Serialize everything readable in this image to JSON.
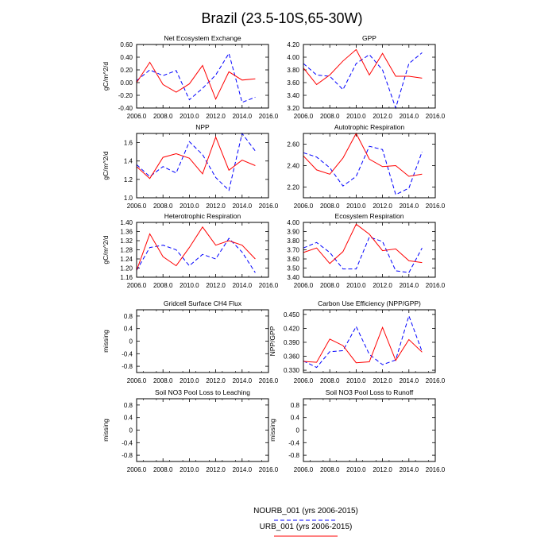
{
  "figure": {
    "title": "Brazil (23.5-10S,65-30W)",
    "legend": [
      {
        "name": "NOURB_001 (yrs 2006-2015)",
        "color": "#0000ff",
        "dash": true
      },
      {
        "name": "URB_001 (yrs 2006-2015)",
        "color": "#ff0000",
        "dash": false
      }
    ]
  },
  "chart_data": [
    {
      "type": "line",
      "title": "Net Ecosystem Exchange",
      "ylabel": "gC/m^2/d",
      "xlim": [
        2006,
        2016
      ],
      "ylim": [
        -0.4,
        0.6
      ],
      "x_ticks": [
        2006,
        2008,
        2010,
        2012,
        2014,
        2016
      ],
      "x_tick_labels": [
        "2006.0",
        "2008.0",
        "2010.0",
        "2012.0",
        "2014.0",
        "2016.0"
      ],
      "y_ticks": [
        -0.4,
        -0.2,
        0,
        0.2,
        0.4,
        0.6
      ],
      "y_tick_labels": [
        "-0.40",
        "-0.20",
        "0.00",
        "0.20",
        "0.40",
        "0.60"
      ],
      "x": [
        2006,
        2007,
        2008,
        2009,
        2010,
        2011,
        2012,
        2013,
        2014,
        2015
      ],
      "series": [
        {
          "color": "#0000ff",
          "dash": true,
          "values": [
            0.03,
            0.2,
            0.11,
            0.19,
            -0.27,
            -0.09,
            0.12,
            0.46,
            -0.31,
            -0.23
          ]
        },
        {
          "color": "#ff0000",
          "dash": false,
          "values": [
            0.0,
            0.32,
            -0.03,
            -0.15,
            -0.02,
            0.27,
            -0.26,
            0.17,
            0.04,
            0.06
          ]
        }
      ]
    },
    {
      "type": "line",
      "title": "GPP",
      "ylabel": "",
      "xlim": [
        2006,
        2016
      ],
      "ylim": [
        3.2,
        4.2
      ],
      "x_ticks": [
        2006,
        2008,
        2010,
        2012,
        2014,
        2016
      ],
      "x_tick_labels": [
        "2006.0",
        "2008.0",
        "2010.0",
        "2012.0",
        "2014.0",
        "2016.0"
      ],
      "y_ticks": [
        3.2,
        3.4,
        3.6,
        3.8,
        4.0,
        4.2
      ],
      "y_tick_labels": [
        "3.20",
        "3.40",
        "3.60",
        "3.80",
        "4.00",
        "4.20"
      ],
      "x": [
        2006,
        2007,
        2008,
        2009,
        2010,
        2011,
        2012,
        2013,
        2014,
        2015
      ],
      "series": [
        {
          "color": "#0000ff",
          "dash": true,
          "values": [
            3.9,
            3.72,
            3.7,
            3.49,
            3.9,
            4.04,
            3.8,
            3.2,
            3.9,
            4.07
          ]
        },
        {
          "color": "#ff0000",
          "dash": false,
          "values": [
            3.83,
            3.57,
            3.72,
            3.94,
            4.12,
            3.72,
            4.06,
            3.7,
            3.7,
            3.67
          ]
        }
      ]
    },
    {
      "type": "line",
      "title": "NPP",
      "ylabel": "gC/m^2/d",
      "xlim": [
        2006,
        2016
      ],
      "ylim": [
        1.0,
        1.7
      ],
      "x_ticks": [
        2006,
        2008,
        2010,
        2012,
        2014,
        2016
      ],
      "x_tick_labels": [
        "2006.0",
        "2008.0",
        "2010.0",
        "2012.0",
        "2014.0",
        "2016.0"
      ],
      "y_ticks": [
        1.0,
        1.2,
        1.4,
        1.6
      ],
      "y_tick_labels": [
        "1.0",
        "1.2",
        "1.4",
        "1.6"
      ],
      "x": [
        2006,
        2007,
        2008,
        2009,
        2010,
        2011,
        2012,
        2013,
        2014,
        2015
      ],
      "series": [
        {
          "color": "#0000ff",
          "dash": true,
          "values": [
            1.36,
            1.23,
            1.34,
            1.27,
            1.61,
            1.47,
            1.22,
            1.08,
            1.7,
            1.51
          ]
        },
        {
          "color": "#ff0000",
          "dash": false,
          "values": [
            1.34,
            1.21,
            1.44,
            1.48,
            1.43,
            1.26,
            1.66,
            1.3,
            1.41,
            1.35
          ]
        }
      ]
    },
    {
      "type": "line",
      "title": "Autotrophic Respiration",
      "ylabel": "",
      "xlim": [
        2006,
        2016
      ],
      "ylim": [
        2.1,
        2.7
      ],
      "x_ticks": [
        2006,
        2008,
        2010,
        2012,
        2014,
        2016
      ],
      "x_tick_labels": [
        "2006.0",
        "2008.0",
        "2010.0",
        "2012.0",
        "2014.0",
        "2016.0"
      ],
      "y_ticks": [
        2.2,
        2.4,
        2.6
      ],
      "y_tick_labels": [
        "2.20",
        "2.40",
        "2.60"
      ],
      "x": [
        2006,
        2007,
        2008,
        2009,
        2010,
        2011,
        2012,
        2013,
        2014,
        2015
      ],
      "series": [
        {
          "color": "#0000ff",
          "dash": true,
          "values": [
            2.52,
            2.48,
            2.38,
            2.21,
            2.3,
            2.58,
            2.55,
            2.13,
            2.19,
            2.53
          ]
        },
        {
          "color": "#ff0000",
          "dash": false,
          "values": [
            2.49,
            2.36,
            2.32,
            2.47,
            2.7,
            2.46,
            2.39,
            2.4,
            2.3,
            2.32
          ]
        }
      ]
    },
    {
      "type": "line",
      "title": "Heterotrophic Respiration",
      "ylabel": "gC/m^2/d",
      "xlim": [
        2006,
        2016
      ],
      "ylim": [
        1.16,
        1.4
      ],
      "x_ticks": [
        2006,
        2008,
        2010,
        2012,
        2014,
        2016
      ],
      "x_tick_labels": [
        "2006.0",
        "2008.0",
        "2010.0",
        "2012.0",
        "2014.0",
        "2016.0"
      ],
      "y_ticks": [
        1.16,
        1.2,
        1.24,
        1.28,
        1.32,
        1.36,
        1.4
      ],
      "y_tick_labels": [
        "1.16",
        "1.20",
        "1.24",
        "1.28",
        "1.32",
        "1.36",
        "1.40"
      ],
      "x": [
        2006,
        2007,
        2008,
        2009,
        2010,
        2011,
        2012,
        2013,
        2014,
        2015
      ],
      "series": [
        {
          "color": "#0000ff",
          "dash": true,
          "values": [
            1.19,
            1.29,
            1.3,
            1.28,
            1.21,
            1.26,
            1.24,
            1.33,
            1.27,
            1.18
          ]
        },
        {
          "color": "#ff0000",
          "dash": false,
          "values": [
            1.19,
            1.35,
            1.25,
            1.21,
            1.29,
            1.38,
            1.3,
            1.32,
            1.3,
            1.24
          ]
        }
      ]
    },
    {
      "type": "line",
      "title": "Ecosystem Respiration",
      "ylabel": "",
      "xlim": [
        2006,
        2016
      ],
      "ylim": [
        3.4,
        4.0
      ],
      "x_ticks": [
        2006,
        2008,
        2010,
        2012,
        2014,
        2016
      ],
      "x_tick_labels": [
        "2006.0",
        "2008.0",
        "2010.0",
        "2012.0",
        "2014.0",
        "2016.0"
      ],
      "y_ticks": [
        3.4,
        3.5,
        3.6,
        3.7,
        3.8,
        3.9,
        4.0
      ],
      "y_tick_labels": [
        "3.40",
        "3.50",
        "3.60",
        "3.70",
        "3.80",
        "3.90",
        "4.00"
      ],
      "x": [
        2006,
        2007,
        2008,
        2009,
        2010,
        2011,
        2012,
        2013,
        2014,
        2015
      ],
      "series": [
        {
          "color": "#0000ff",
          "dash": true,
          "values": [
            3.72,
            3.78,
            3.67,
            3.49,
            3.49,
            3.84,
            3.79,
            3.47,
            3.45,
            3.72
          ]
        },
        {
          "color": "#ff0000",
          "dash": false,
          "values": [
            3.67,
            3.72,
            3.55,
            3.68,
            3.98,
            3.87,
            3.69,
            3.71,
            3.58,
            3.56
          ]
        }
      ]
    },
    {
      "type": "line",
      "title": "Gridcell Surface CH4 Flux",
      "ylabel": "missing",
      "xlim": [
        2006,
        2016
      ],
      "ylim": [
        -1,
        1
      ],
      "x_ticks": [
        2006,
        2008,
        2010,
        2012,
        2014,
        2016
      ],
      "x_tick_labels": [
        "2006.0",
        "2008.0",
        "2010.0",
        "2012.0",
        "2014.0",
        "2016.0"
      ],
      "y_ticks": [
        -0.8,
        -0.4,
        0,
        0.4,
        0.8
      ],
      "y_tick_labels": [
        "-0.8",
        "-0.4",
        "0",
        "0.4",
        "0.8"
      ],
      "x": [],
      "series": []
    },
    {
      "type": "line",
      "title": "Carbon Use Efficiency (NPP/GPP)",
      "ylabel": "NPP/GPP",
      "xlim": [
        2006,
        2016
      ],
      "ylim": [
        0.325,
        0.46
      ],
      "x_ticks": [
        2006,
        2008,
        2010,
        2012,
        2014,
        2016
      ],
      "x_tick_labels": [
        "2006.0",
        "2008.0",
        "2010.0",
        "2012.0",
        "2014.0",
        "2016.0"
      ],
      "y_ticks": [
        0.33,
        0.36,
        0.39,
        0.42,
        0.45
      ],
      "y_tick_labels": [
        "0.330",
        "0.360",
        "0.390",
        "0.420",
        "0.450"
      ],
      "x": [
        2006,
        2007,
        2008,
        2009,
        2010,
        2011,
        2012,
        2013,
        2014,
        2015
      ],
      "series": [
        {
          "color": "#0000ff",
          "dash": true,
          "values": [
            0.35,
            0.336,
            0.37,
            0.372,
            0.424,
            0.364,
            0.342,
            0.352,
            0.447,
            0.37
          ]
        },
        {
          "color": "#ff0000",
          "dash": false,
          "values": [
            0.349,
            0.347,
            0.397,
            0.383,
            0.346,
            0.348,
            0.422,
            0.351,
            0.396,
            0.369
          ]
        }
      ]
    },
    {
      "type": "line",
      "title": "Soil NO3 Pool Loss to Leaching",
      "ylabel": "missing",
      "xlim": [
        2006,
        2016
      ],
      "ylim": [
        -1,
        1
      ],
      "x_ticks": [
        2006,
        2008,
        2010,
        2012,
        2014,
        2016
      ],
      "x_tick_labels": [
        "2006.0",
        "2008.0",
        "2010.0",
        "2012.0",
        "2014.0",
        "2016.0"
      ],
      "y_ticks": [
        -0.8,
        -0.4,
        0,
        0.4,
        0.8
      ],
      "y_tick_labels": [
        "-0.8",
        "-0.4",
        "0",
        "0.4",
        "0.8"
      ],
      "x": [],
      "series": []
    },
    {
      "type": "line",
      "title": "Soil NO3 Pool Loss to Runoff",
      "ylabel": "missing",
      "xlim": [
        2006,
        2016
      ],
      "ylim": [
        -1,
        1
      ],
      "x_ticks": [
        2006,
        2008,
        2010,
        2012,
        2014,
        2016
      ],
      "x_tick_labels": [
        "2006.0",
        "2008.0",
        "2010.0",
        "2012.0",
        "2014.0",
        "2016.0"
      ],
      "y_ticks": [
        -0.8,
        -0.4,
        0,
        0.4,
        0.8
      ],
      "y_tick_labels": [
        "-0.8",
        "-0.4",
        "0",
        "0.4",
        "0.8"
      ],
      "x": [],
      "series": []
    }
  ]
}
